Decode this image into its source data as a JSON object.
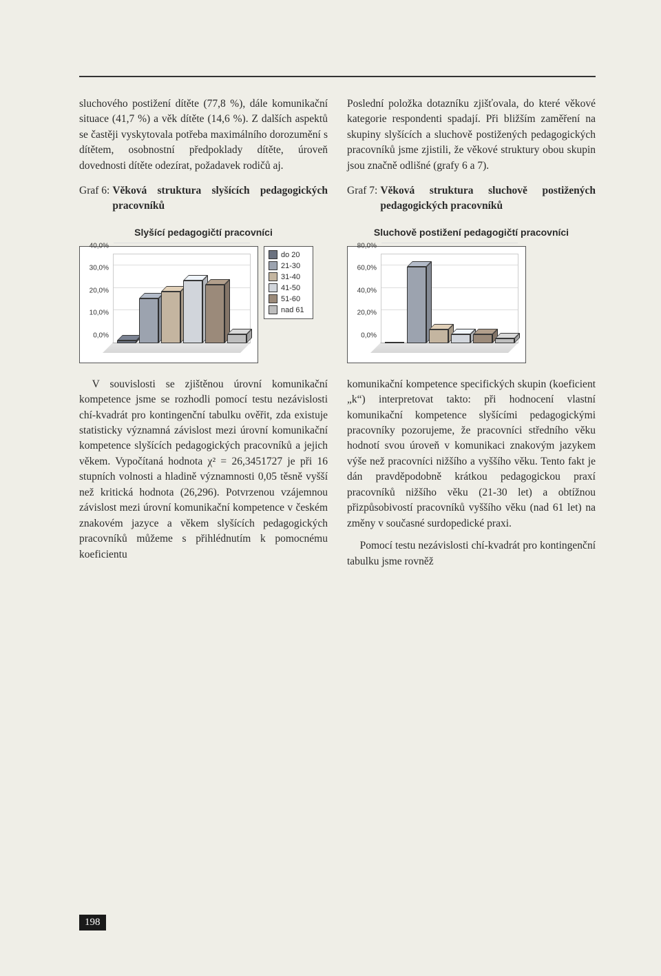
{
  "top_left_para": "sluchového postižení dítěte (77,8 %), dále komunikační situace (41,7 %) a věk dítěte (14,6 %). Z dalších aspektů se častěji vyskytovala potřeba maximálního dorozumění s dítětem, osobnostní předpoklady dítěte, úroveň dovednosti dítěte odezírat, požadavek rodičů aj.",
  "top_right_para": "Poslední položka dotazníku zjišťovala, do které věkové kategorie respondenti spadají. Při bližším zaměření na skupiny slyšících a sluchově postižených pedagogických pracovníků jsme zjistili, že věkové struktury obou skupin jsou značně odlišné (grafy 6 a 7).",
  "graf6_label": "Graf 6: ",
  "graf6_title": "Věková struktura slyšících pedagogických pracovníků",
  "graf7_label": "Graf 7: ",
  "graf7_title": "Věková struktura sluchově postižených pedagogických pracovníků",
  "chart6": {
    "type": "bar",
    "heading": "Slyšící pedagogičtí pracovníci",
    "ylim": [
      0,
      40
    ],
    "ytick_step": 10,
    "ytick_labels": [
      "0,0%",
      "10,0%",
      "20,0%",
      "30,0%",
      "40,0%"
    ],
    "values": [
      1,
      20,
      23,
      28,
      26,
      4
    ],
    "bar_colors": [
      "#6b7280",
      "#9ca3af",
      "#c4b5a0",
      "#d1d5db",
      "#9b8a7a",
      "#bdbdbd"
    ],
    "background": "#ffffff",
    "border": "#555555"
  },
  "chart7": {
    "type": "bar",
    "heading": "Sluchově postižení pedagogičtí pracovníci",
    "ylim": [
      0,
      80
    ],
    "ytick_step": 20,
    "ytick_labels": [
      "0,0%",
      "20,0%",
      "40,0%",
      "60,0%",
      "80,0%"
    ],
    "values": [
      0,
      68,
      12,
      8,
      8,
      4
    ],
    "bar_colors": [
      "#6b7280",
      "#9ca3af",
      "#c4b5a0",
      "#d1d5db",
      "#9b8a7a",
      "#bdbdbd"
    ],
    "background": "#ffffff",
    "border": "#555555"
  },
  "legend": {
    "items": [
      {
        "label": "do 20",
        "color": "#6b7280"
      },
      {
        "label": "21-30",
        "color": "#9ca3af"
      },
      {
        "label": "31-40",
        "color": "#c4b5a0"
      },
      {
        "label": "41-50",
        "color": "#d1d5db"
      },
      {
        "label": "51-60",
        "color": "#9b8a7a"
      },
      {
        "label": "nad 61",
        "color": "#bdbdbd"
      }
    ]
  },
  "bottom_left_para": "V souvislosti se zjištěnou úrovní komunikační kompetence jsme se rozhodli pomocí testu nezávislosti chí-kvadrát pro kontingenční tabulku ověřit, zda existuje statisticky významná závislost mezi úrovní komunikační kompetence slyšících pedagogických pracovníků a jejich věkem. Vypočítaná hodnota χ² = 26,3451727 je při 16 stupních volnosti a hladině významnosti 0,05 těsně vyšší než kritická hodnota (26,296). Potvrzenou vzájemnou závislost mezi úrovní komunikační kompetence v českém znakovém jazyce a věkem slyšících pedagogických pracovníků můžeme s přihlédnutím k pomocnému koeficientu",
  "bottom_right_para1": "komunikační kompetence specifických skupin (koeficient „k“) interpretovat takto: při hodnocení vlastní komunikační kompetence slyšícími pedagogickými pracovníky pozorujeme, že pracovníci středního věku hodnotí svou úroveň v komunikaci znakovým jazykem výše než pracovníci nižšího a vyššího věku. Tento fakt je dán pravděpodobně krátkou pedagogickou praxí pracovníků nižšího věku (21-30 let) a obtížnou přizpůsobivostí pracovníků vyššího věku (nad 61 let) na změny v současné surdopedické praxi.",
  "bottom_right_para2": "Pomocí testu nezávislosti chí-kvadrát pro kontingenční tabulku jsme rovněž",
  "page_number": "198"
}
